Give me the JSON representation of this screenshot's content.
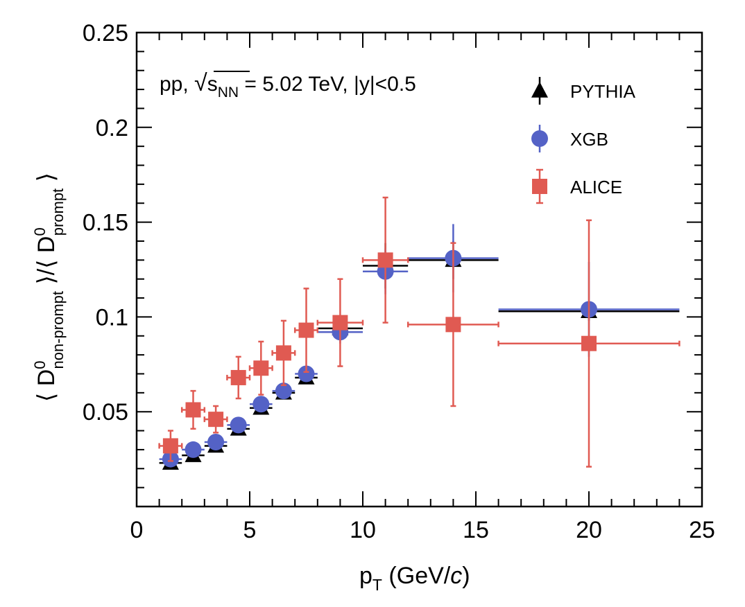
{
  "chart_data": {
    "type": "scatter",
    "title": "",
    "annotation": {
      "prefix": "pp, ",
      "sqrt_symbol": "√",
      "sqrt_base": "s",
      "sqrt_subscript": "NN",
      "suffix": " = 5.02 TeV, |y|<0.5"
    },
    "xlabel": {
      "base": "p",
      "sub": "T",
      "rest": " (GeV/",
      "italic": "c",
      "close": ")"
    },
    "ylabel": {
      "open": "⟨ D",
      "num_sup": "0",
      "num_sub": "non-prompt",
      "mid": " ⟩/⟨ D",
      "den_sup": "0",
      "den_sub": "prompt",
      "close": " ⟩"
    },
    "xlim": [
      0,
      25
    ],
    "ylim": [
      0,
      0.25
    ],
    "xticks": [
      0,
      5,
      10,
      15,
      20,
      25
    ],
    "xtick_labels": [
      "0",
      "5",
      "10",
      "15",
      "20",
      "25"
    ],
    "yticks": [
      0.05,
      0.1,
      0.15,
      0.2,
      0.25
    ],
    "ytick_labels": [
      "0.05",
      "0.1",
      "0.15",
      "0.2",
      "0.25"
    ],
    "grid": false,
    "legend_position": "top-right",
    "series": [
      {
        "name": "PYTHIA",
        "color": "#000000",
        "marker": "triangle",
        "points": [
          {
            "x": 1.5,
            "y": 0.023,
            "xerr": 0.5,
            "yerr": 0.001
          },
          {
            "x": 2.5,
            "y": 0.027,
            "xerr": 0.5,
            "yerr": 0.001
          },
          {
            "x": 3.5,
            "y": 0.032,
            "xerr": 0.5,
            "yerr": 0.001
          },
          {
            "x": 4.5,
            "y": 0.041,
            "xerr": 0.5,
            "yerr": 0.001
          },
          {
            "x": 5.5,
            "y": 0.052,
            "xerr": 0.5,
            "yerr": 0.001
          },
          {
            "x": 6.5,
            "y": 0.06,
            "xerr": 0.5,
            "yerr": 0.001
          },
          {
            "x": 7.5,
            "y": 0.068,
            "xerr": 0.5,
            "yerr": 0.002
          },
          {
            "x": 9.0,
            "y": 0.094,
            "xerr": 1.0,
            "yerr": 0.004
          },
          {
            "x": 11.0,
            "y": 0.127,
            "xerr": 1.0,
            "yerr": 0.012
          },
          {
            "x": 14.0,
            "y": 0.13,
            "xerr": 2.0,
            "yerr": 0.01
          },
          {
            "x": 20.0,
            "y": 0.103,
            "xerr": 4.0,
            "yerr": 0.005
          }
        ]
      },
      {
        "name": "XGB",
        "color": "#5462c6",
        "marker": "circle",
        "points": [
          {
            "x": 1.5,
            "y": 0.025,
            "xerr": 0.5,
            "yerr": 0.001
          },
          {
            "x": 2.5,
            "y": 0.03,
            "xerr": 0.5,
            "yerr": 0.001
          },
          {
            "x": 3.5,
            "y": 0.034,
            "xerr": 0.5,
            "yerr": 0.001
          },
          {
            "x": 4.5,
            "y": 0.043,
            "xerr": 0.5,
            "yerr": 0.001
          },
          {
            "x": 5.5,
            "y": 0.054,
            "xerr": 0.5,
            "yerr": 0.002
          },
          {
            "x": 6.5,
            "y": 0.061,
            "xerr": 0.5,
            "yerr": 0.002
          },
          {
            "x": 7.5,
            "y": 0.07,
            "xerr": 0.5,
            "yerr": 0.002
          },
          {
            "x": 9.0,
            "y": 0.092,
            "xerr": 1.0,
            "yerr": 0.006
          },
          {
            "x": 11.0,
            "y": 0.124,
            "xerr": 1.0,
            "yerr": 0.012
          },
          {
            "x": 14.0,
            "y": 0.131,
            "xerr": 2.0,
            "yerr": 0.018
          },
          {
            "x": 20.0,
            "y": 0.104,
            "xerr": 4.0,
            "yerr": 0.025
          }
        ]
      },
      {
        "name": "ALICE",
        "color": "#e05a52",
        "marker": "square",
        "points": [
          {
            "x": 1.5,
            "y": 0.032,
            "xerr": 0.5,
            "yerr": 0.008
          },
          {
            "x": 2.5,
            "y": 0.051,
            "xerr": 0.5,
            "yerr": 0.01
          },
          {
            "x": 3.5,
            "y": 0.046,
            "xerr": 0.5,
            "yerr": 0.007
          },
          {
            "x": 4.5,
            "y": 0.068,
            "xerr": 0.5,
            "yerr": 0.011
          },
          {
            "x": 5.5,
            "y": 0.073,
            "xerr": 0.5,
            "yerr": 0.014
          },
          {
            "x": 6.5,
            "y": 0.081,
            "xerr": 0.5,
            "yerr": 0.017
          },
          {
            "x": 7.5,
            "y": 0.093,
            "xerr": 0.5,
            "yerr": 0.022
          },
          {
            "x": 9.0,
            "y": 0.097,
            "xerr": 1.0,
            "yerr": 0.023
          },
          {
            "x": 11.0,
            "y": 0.13,
            "xerr": 1.0,
            "yerr": 0.033
          },
          {
            "x": 14.0,
            "y": 0.096,
            "xerr": 2.0,
            "yerr": 0.043
          },
          {
            "x": 20.0,
            "y": 0.086,
            "xerr": 4.0,
            "yerr": 0.065
          }
        ]
      }
    ]
  }
}
